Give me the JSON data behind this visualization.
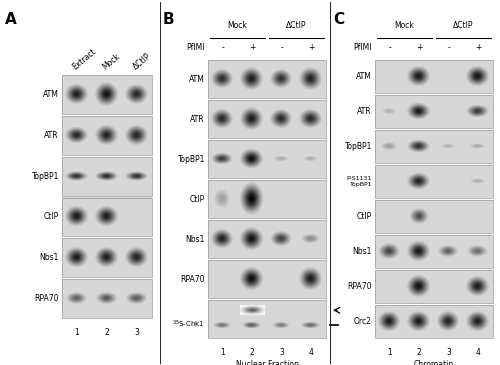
{
  "fig_width": 5.0,
  "fig_height": 3.65,
  "dpi": 100,
  "bg_color": "#ffffff",
  "panel_A": {
    "label": "A",
    "col_labels": [
      "Extract",
      "Mock",
      "ΔCtIP"
    ],
    "row_labels": [
      "ATM",
      "ATR",
      "TopBP1",
      "CtIP",
      "Nbs1",
      "RPA70"
    ],
    "lane_numbers": [
      "1",
      "2",
      "3"
    ]
  },
  "panel_B": {
    "label": "B",
    "group_labels": [
      "Mock",
      "ΔCtIP"
    ],
    "col_labels": [
      "-",
      "+",
      "-",
      "+"
    ],
    "row_labels": [
      "ATM",
      "ATR",
      "TopBP1",
      "CtIP",
      "Nbs1",
      "RPA70",
      "35S-Chk1"
    ],
    "lane_numbers": [
      "1",
      "2",
      "3",
      "4"
    ],
    "bottom_label": "Nuclear Fraction",
    "pflmi_label": "PflMI"
  },
  "panel_C": {
    "label": "C",
    "group_labels": [
      "Mock",
      "ΔCtIP"
    ],
    "col_labels": [
      "-",
      "+",
      "-",
      "+"
    ],
    "row_labels": [
      "ATM",
      "ATR",
      "TopBP1",
      "P-S1131\nTopBP1",
      "CtIP",
      "Nbs1",
      "RPA70",
      "Orc2"
    ],
    "lane_numbers": [
      "1",
      "2",
      "3",
      "4"
    ],
    "bottom_label": "Chromatin",
    "pflmi_label": "PflMI"
  }
}
